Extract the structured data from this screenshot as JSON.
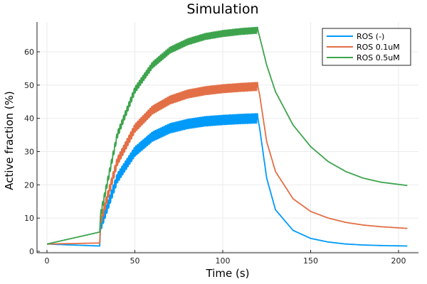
{
  "chart_data": {
    "type": "line",
    "title": "Simulation",
    "xlabel": "Time (s)",
    "ylabel": "Active fraction (%)",
    "xlim": [
      -5,
      210
    ],
    "ylim": [
      -0.5,
      69
    ],
    "xticks": [
      0,
      50,
      100,
      150,
      200
    ],
    "yticks": [
      0,
      10,
      20,
      30,
      40,
      50,
      60
    ],
    "grid": true,
    "legend_position": "top-right",
    "series": [
      {
        "name": "ROS (-)",
        "color": "#009af9",
        "x": [
          0,
          30,
          30.5,
          40,
          50,
          60,
          70,
          80,
          90,
          100,
          110,
          120,
          121,
          125,
          130,
          140,
          150,
          160,
          170,
          180,
          190,
          205
        ],
        "y": [
          2.2,
          1.6,
          7.5,
          22,
          30,
          34.5,
          37,
          38.3,
          39.1,
          39.5,
          39.8,
          40,
          37,
          22,
          12.5,
          6.3,
          3.9,
          2.8,
          2.2,
          1.9,
          1.75,
          1.6
        ]
      },
      {
        "name": "ROS 0.1uM",
        "color": "#e26f46",
        "x": [
          0,
          30,
          30.5,
          40,
          50,
          60,
          70,
          80,
          90,
          100,
          110,
          120,
          121,
          125,
          130,
          140,
          150,
          160,
          170,
          180,
          190,
          205
        ],
        "y": [
          2.2,
          2.5,
          9,
          27,
          37,
          42.5,
          45.5,
          47.3,
          48.3,
          48.9,
          49.3,
          49.6,
          47,
          33,
          24,
          15.8,
          12,
          10,
          8.7,
          7.9,
          7.4,
          6.9
        ]
      },
      {
        "name": "ROS 0.5uM",
        "color": "#3da44d",
        "x": [
          0,
          30,
          30.5,
          40,
          50,
          60,
          70,
          80,
          90,
          100,
          110,
          120,
          121,
          125,
          130,
          140,
          150,
          160,
          170,
          180,
          190,
          205
        ],
        "y": [
          2.2,
          5.8,
          11,
          35,
          48.5,
          56,
          60.5,
          63,
          64.6,
          65.5,
          66.1,
          66.5,
          64.5,
          56,
          48,
          38,
          31.5,
          27,
          24,
          22,
          20.8,
          19.8
        ]
      }
    ]
  }
}
